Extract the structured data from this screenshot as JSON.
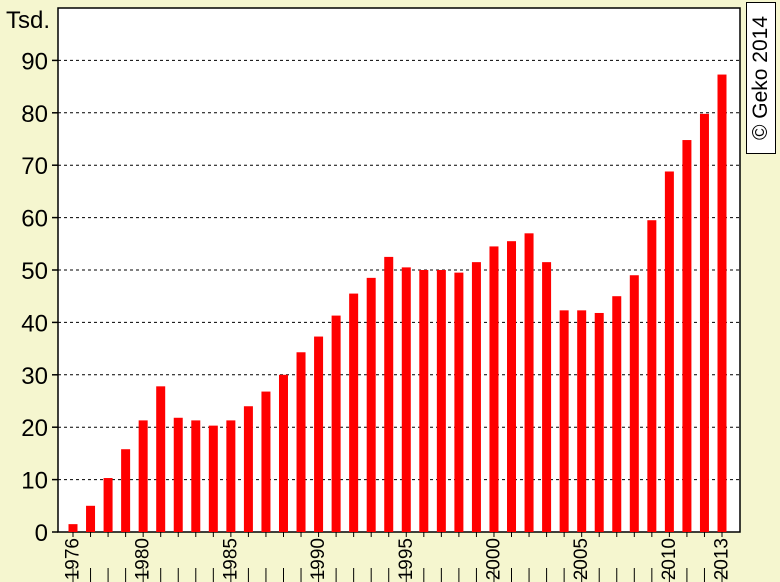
{
  "chart_data": {
    "type": "bar",
    "ylabel": "Tsd.",
    "ylim": [
      0,
      100
    ],
    "yticks": [
      0,
      10,
      20,
      30,
      40,
      50,
      60,
      70,
      80,
      90
    ],
    "grid": "horizontal dashed",
    "bar_color": "#ff0000",
    "categories": [
      1976,
      1977,
      1978,
      1979,
      1980,
      1981,
      1982,
      1983,
      1984,
      1985,
      1986,
      1987,
      1988,
      1989,
      1990,
      1991,
      1992,
      1993,
      1994,
      1995,
      1996,
      1997,
      1998,
      1999,
      2000,
      2001,
      2002,
      2003,
      2004,
      2005,
      2006,
      2007,
      2008,
      2009,
      2010,
      2011,
      2012,
      2013
    ],
    "xtick_labels": [
      "1976",
      "1980",
      "1985",
      "1990",
      "1995",
      "2000",
      "2005",
      "2010",
      "2013"
    ],
    "values": [
      1.5,
      5,
      10.3,
      15.8,
      21.3,
      27.8,
      21.8,
      21.3,
      20.3,
      21.3,
      24,
      26.8,
      30,
      34.3,
      37.3,
      41.3,
      45.5,
      48.5,
      52.5,
      50.5,
      50,
      50,
      49.5,
      51.5,
      54.5,
      55.5,
      57,
      51.5,
      42.3,
      42.3,
      41.8,
      45,
      49,
      59.5,
      68.8,
      74.8,
      79.8,
      87.3
    ]
  },
  "copyright": "© Geko 2014"
}
